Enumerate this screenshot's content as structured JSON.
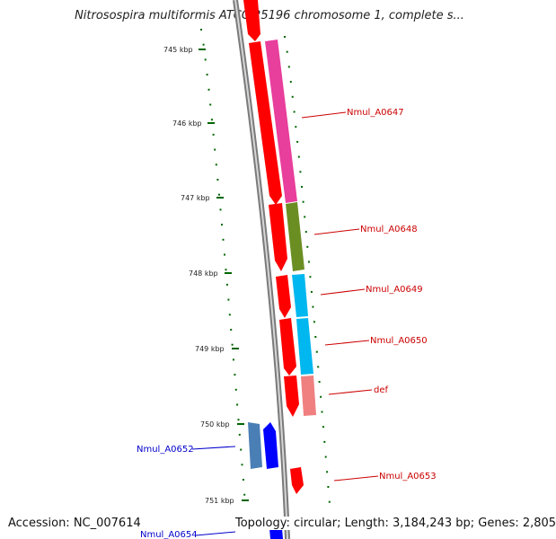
{
  "title": "Nitrosospira multiformis ATCC 25196 chromosome 1, complete s...",
  "footer": {
    "accession": "Accession: NC_007614",
    "summary": "Topology: circular; Length: 3,184,243 bp; Genes: 2,805"
  },
  "ticks": [
    "745 kbp",
    "746 kbp",
    "747 kbp",
    "748 kbp",
    "749 kbp",
    "750 kbp",
    "751 kbp"
  ],
  "genes": [
    {
      "label": "Nmul_A0647",
      "color": "#cc0000"
    },
    {
      "label": "Nmul_A0648",
      "color": "#cc0000"
    },
    {
      "label": "Nmul_A0649",
      "color": "#cc0000"
    },
    {
      "label": "Nmul_A0650",
      "color": "#cc0000"
    },
    {
      "label": "def",
      "color": "#cc0000"
    },
    {
      "label": "Nmul_A0653",
      "color": "#cc0000"
    },
    {
      "label": "Nmul_A0652",
      "color": "#0000cc"
    },
    {
      "label": "Nmul_A0654",
      "color": "#0000cc"
    }
  ],
  "colors": {
    "forward_cds": "#ff0000",
    "reverse_cds": "#0000ff",
    "reverse_light": "#4a7fb5",
    "pink_feature": "#e83e9c",
    "olive_feature": "#6b8e23",
    "cyan_feature": "#00b7ef",
    "salmon_feature": "#f08080",
    "backbone": "#808080",
    "tick_marks": "#006600"
  }
}
